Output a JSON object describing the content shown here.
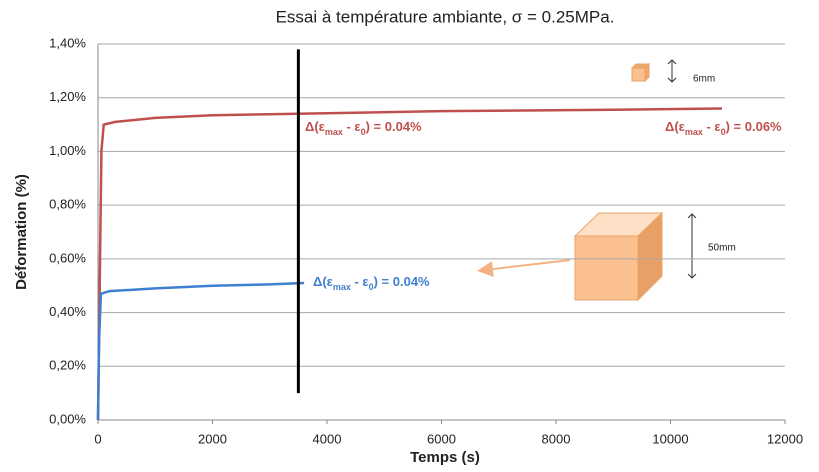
{
  "chart_data": {
    "type": "line",
    "title": "Essai à température ambiante, σ = 0.25MPa.",
    "x_label": "Temps (s)",
    "y_label": "Déformation (%)",
    "xlim": [
      0,
      12000
    ],
    "xticks": [
      0,
      2000,
      4000,
      6000,
      8000,
      10000,
      12000
    ],
    "ylim": [
      0,
      1.4
    ],
    "yticks": [
      {
        "value": 0,
        "label": "0,00%"
      },
      {
        "value": 0.2,
        "label": "0,20%"
      },
      {
        "value": 0.4,
        "label": "0,40%"
      },
      {
        "value": 0.6,
        "label": "0,60%"
      },
      {
        "value": 0.8,
        "label": "0,80%"
      },
      {
        "value": 1.0,
        "label": "1,00%"
      },
      {
        "value": 1.2,
        "label": "1,20%"
      },
      {
        "value": 1.4,
        "label": "1,40%"
      }
    ],
    "grid": true,
    "series": [
      {
        "color": "#c0504d",
        "x": [
          0,
          60,
          100,
          300,
          1000,
          2000,
          3500,
          6000,
          9000,
          10900
        ],
        "values": [
          0,
          1.0,
          1.1,
          1.11,
          1.125,
          1.135,
          1.14,
          1.15,
          1.155,
          1.16
        ]
      },
      {
        "color": "#3f7fcf",
        "x": [
          0,
          20,
          50,
          200,
          1000,
          2000,
          3000,
          3600
        ],
        "values": [
          0,
          0.3,
          0.47,
          0.48,
          0.49,
          0.5,
          0.505,
          0.51
        ]
      }
    ],
    "vline": {
      "x": 3500,
      "ymin": 0.1,
      "ymax": 1.38,
      "color": "#000000"
    },
    "annotations": [
      {
        "prefix": "Δ(ε",
        "sub1": "max",
        "mid": " - ε",
        "sub2": "0",
        "suffix": ") = 0.04%",
        "color": "#c0504d"
      },
      {
        "prefix": "Δ(ε",
        "sub1": "max",
        "mid": " - ε",
        "sub2": "0",
        "suffix": ") = 0.06%",
        "color": "#c0504d"
      },
      {
        "prefix": "Δ(ε",
        "sub1": "max",
        "mid": " - ε",
        "sub2": "0",
        "suffix": ") = 0.04%",
        "color": "#3f7fcf"
      }
    ],
    "sample_labels": [
      "6mm",
      "50mm"
    ]
  }
}
